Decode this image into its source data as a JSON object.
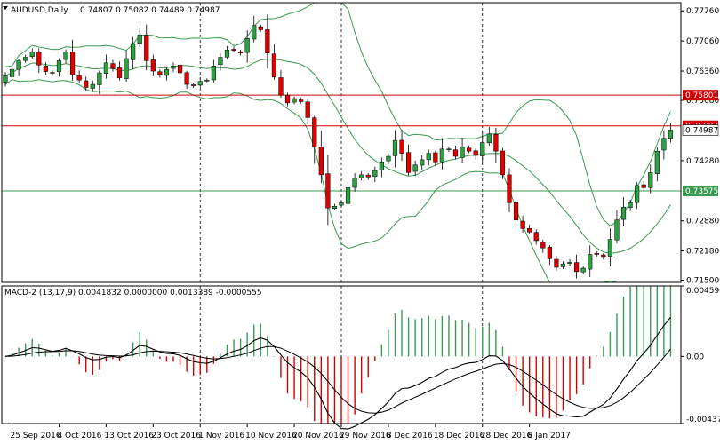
{
  "header": {
    "symbol_label": "AUDUSD,Daily",
    "ohlc_label": "0.74807 0.75082 0.74489 0.74987"
  },
  "macd": {
    "label": "MACD-2 (13,17,9) 0.0041832 0.0000000 0.0013389 -0.0000555"
  },
  "colors": {
    "background": "#ffffff",
    "bull_candle": "#2ea043",
    "bear_candle": "#e00000",
    "band": "#3a9a52",
    "support_line": "#3a9a52",
    "resistance_line": "#d00000",
    "macd_line": "#000000",
    "signal_line": "#000000",
    "hist_pos": "#3a9a52",
    "hist_neg": "#d00000",
    "grid_dash": "#000000"
  },
  "chart_data": {
    "type": "candlestick",
    "price_ylim": [
      0.7145,
      0.7795
    ],
    "price_ticks": [
      "0.77760",
      "0.77060",
      "0.76360",
      "0.75680",
      "0.74280",
      "0.72880",
      "0.72180",
      "0.71500"
    ],
    "price_tick_values": [
      0.7776,
      0.7706,
      0.7636,
      0.7568,
      0.7428,
      0.7288,
      0.7218,
      0.715
    ],
    "current_price": {
      "label": "0.74987",
      "value": 0.74987
    },
    "hlines": [
      {
        "label": "0.75801",
        "value": 0.75801,
        "color": "#d00000",
        "kind": "resistance"
      },
      {
        "label": "0.75087",
        "value": 0.75087,
        "color": "#d00000",
        "kind": "resistance"
      },
      {
        "label": "0.73575",
        "value": 0.73575,
        "color": "#3a9a52",
        "kind": "support"
      }
    ],
    "x_labels": [
      "25 Sep 2016",
      "4 Oct 2016",
      "13 Oct 2016",
      "23 Oct 2016",
      "1 Nov 2016",
      "10 Nov 2016",
      "20 Nov 2016",
      "29 Nov 2016",
      "8 Dec 2016",
      "18 Dec 2016",
      "28 Dec 2016",
      "8 Jan 2017"
    ],
    "x_label_bar_index": [
      1,
      8,
      15,
      22,
      29,
      36,
      43,
      50,
      57,
      64,
      71,
      78
    ],
    "vgrid_bar_index": [
      29,
      50,
      71
    ],
    "close_path": [
      0.7625,
      0.764,
      0.766,
      0.7668,
      0.768,
      0.765,
      0.7635,
      0.7632,
      0.766,
      0.768,
      0.7628,
      0.7615,
      0.7598,
      0.7605,
      0.7632,
      0.7655,
      0.7642,
      0.762,
      0.7665,
      0.77,
      0.772,
      0.766,
      0.7636,
      0.7628,
      0.764,
      0.7648,
      0.7632,
      0.7605,
      0.7602,
      0.7612,
      0.7615,
      0.7648,
      0.7668,
      0.7685,
      0.7684,
      0.7678,
      0.7712,
      0.7742,
      0.7732,
      0.7678,
      0.7622,
      0.758,
      0.7562,
      0.7572,
      0.7565,
      0.7528,
      0.746,
      0.7395,
      0.7318,
      0.7322,
      0.733,
      0.7365,
      0.7388,
      0.7395,
      0.739,
      0.7405,
      0.7425,
      0.7438,
      0.7475,
      0.7445,
      0.74,
      0.7418,
      0.743,
      0.7445,
      0.7425,
      0.7455,
      0.7455,
      0.7438,
      0.746,
      0.745,
      0.744,
      0.747,
      0.749,
      0.745,
      0.7395,
      0.733,
      0.729,
      0.727,
      0.7262,
      0.7242,
      0.7225,
      0.72,
      0.718,
      0.7188,
      0.7192,
      0.717,
      0.7178,
      0.721,
      0.721,
      0.7205,
      0.7245,
      0.729,
      0.732,
      0.733,
      0.737,
      0.7365,
      0.74,
      0.745,
      0.748,
      0.7499
    ],
    "macd_ylim": [
      -0.004378,
      0.00459
    ],
    "macd_ticks": [
      "0.004590",
      "0.00",
      "-0.004378"
    ],
    "macd_tick_values": [
      0.00459,
      0.0,
      -0.004378
    ]
  }
}
